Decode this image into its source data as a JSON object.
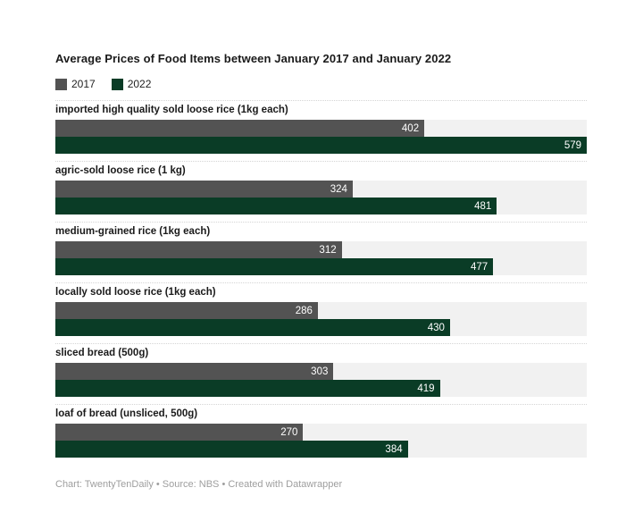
{
  "page": {
    "title": "Average Prices of Food Items between January 2017 and January 2022",
    "footer": "Chart: TwentyTenDaily • Source: NBS • Created with Datawrapper"
  },
  "colors": {
    "bar_2017": "#535353",
    "bar_2022": "#0a3c26",
    "track": "#f1f1f1",
    "separator": "#d5d5d5",
    "value_label": "#ffffff",
    "footer_text": "#9e9e9e"
  },
  "chart_data": {
    "type": "bar",
    "orientation": "horizontal",
    "title": "Average Prices of Food Items between January 2017 and January 2022",
    "categories": [
      "imported high quality sold loose rice (1kg each)",
      "agric-sold loose rice (1 kg)",
      "medium-grained rice (1kg each)",
      "locally sold loose rice (1kg each)",
      "sliced bread (500g)",
      "loaf of bread (unsliced, 500g)"
    ],
    "series": [
      {
        "name": "2017",
        "color": "#535353",
        "values": [
          402,
          324,
          312,
          286,
          303,
          270
        ]
      },
      {
        "name": "2022",
        "color": "#0a3c26",
        "values": [
          579,
          481,
          477,
          430,
          419,
          384
        ]
      }
    ],
    "value_axis_max": 579,
    "grid": false,
    "legend_position": "top",
    "value_labels": "inside-end",
    "xlabel": "",
    "ylabel": ""
  }
}
